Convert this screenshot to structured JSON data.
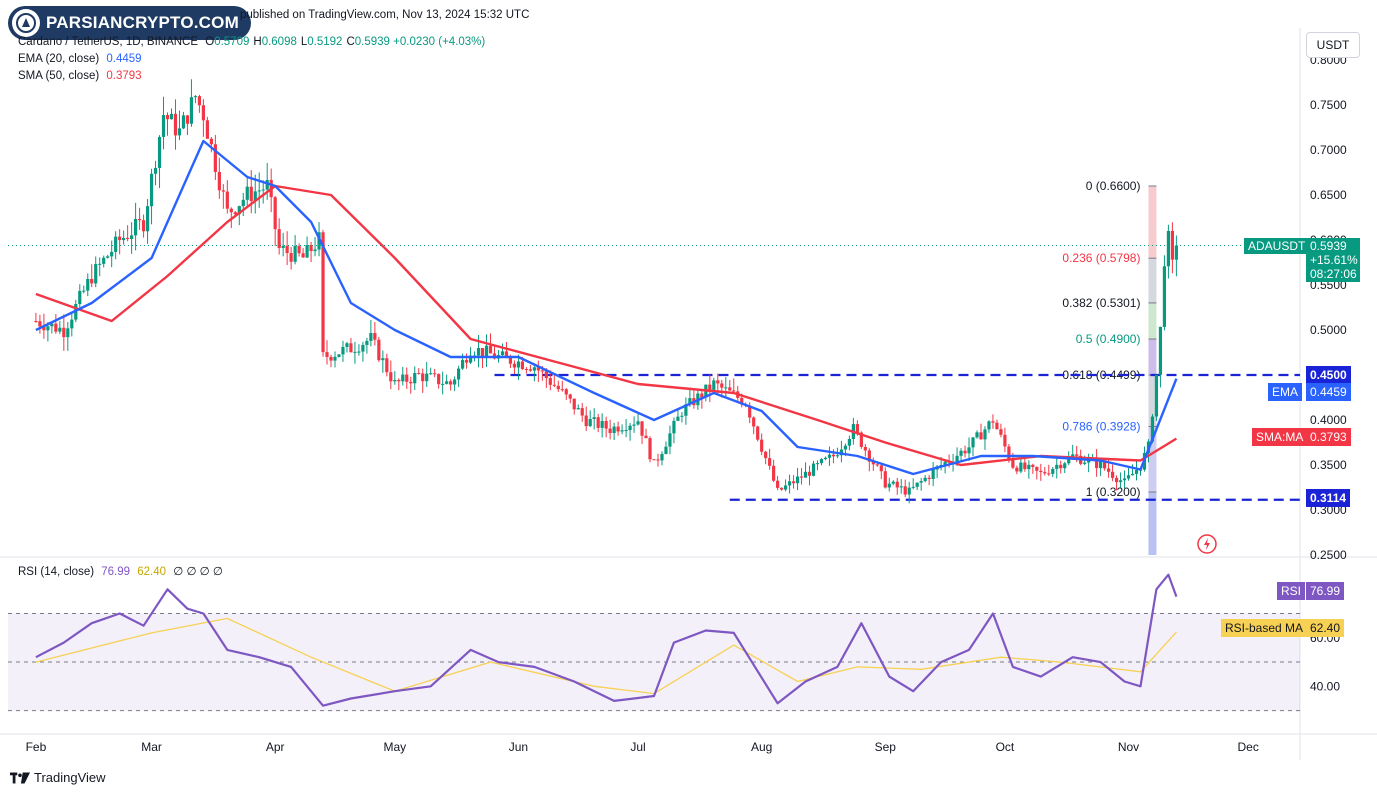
{
  "watermark": {
    "brand": "PARSIANCRYPTO.COM"
  },
  "header": {
    "published_line": "published on TradingView.com, Nov 13, 2024 15:32 UTC",
    "symbol": "Cardano / TetherUS, 1D, BINANCE",
    "ohlc": [
      {
        "k": "O",
        "v": "0.5709"
      },
      {
        "k": "H",
        "v": "0.6098"
      },
      {
        "k": "L",
        "v": "0.5192"
      },
      {
        "k": "C",
        "v": "0.5939"
      }
    ],
    "change": "+0.0230 (+4.03%)",
    "ema_label": "EMA (20, close)",
    "ema_value": "0.4459",
    "sma_label": "SMA (50, close)",
    "sma_value": "0.3793",
    "rsi_label": "RSI (14, close)",
    "rsi_value": "76.99",
    "rsi_ma_value": "62.40",
    "rsi_extra": "∅ ∅ ∅ ∅"
  },
  "currency_button": "USDT",
  "price_tag": {
    "symbol": "ADAUSDT",
    "price": "0.5939",
    "change": "+15.61%",
    "countdown": "08:27:06"
  },
  "level_tags": {
    "resistance": "0.4500",
    "support": "0.3114",
    "ema": "EMA",
    "ema_val": "0.4459",
    "sma": "SMA:MA",
    "sma_val": "0.3793",
    "rsi": "RSI",
    "rsi_val": "76.99",
    "rsi_ma": "RSI-based MA",
    "rsi_ma_val": "62.40"
  },
  "footer": {
    "brand": "TradingView"
  },
  "colors": {
    "up": "#089981",
    "down": "#f23645",
    "ema": "#2962ff",
    "sma": "#f23645",
    "rsi": "#7e57c2",
    "rsi_ma": "#f7d154",
    "level": "#1a23d6"
  },
  "chart_data": {
    "type": "candlestick",
    "title": "Cardano / TetherUS, 1D, BINANCE",
    "x_ticks": [
      "Feb",
      "Mar",
      "Apr",
      "May",
      "Jun",
      "Jul",
      "Aug",
      "Sep",
      "Oct",
      "Nov",
      "Dec"
    ],
    "y_ticks": [
      "0.8000",
      "0.7500",
      "0.7000",
      "0.6500",
      "0.6000",
      "0.5500",
      "0.5000",
      "0.4500",
      "0.4000",
      "0.3500",
      "0.3000",
      "0.2500"
    ],
    "rsi_ticks": [
      "80.00",
      "60.00",
      "40.00"
    ],
    "ylim": [
      0.25,
      0.8
    ],
    "rsi_ylim": [
      22,
      90
    ],
    "price_path": [
      [
        "2024-02-01",
        0.51
      ],
      [
        "2024-02-08",
        0.5
      ],
      [
        "2024-02-15",
        0.56
      ],
      [
        "2024-02-22",
        0.6
      ],
      [
        "2024-02-28",
        0.62
      ],
      [
        "2024-03-04",
        0.74
      ],
      [
        "2024-03-08",
        0.72
      ],
      [
        "2024-03-12",
        0.76
      ],
      [
        "2024-03-14",
        0.74
      ],
      [
        "2024-03-20",
        0.63
      ],
      [
        "2024-03-25",
        0.65
      ],
      [
        "2024-03-30",
        0.66
      ],
      [
        "2024-04-02",
        0.59
      ],
      [
        "2024-04-08",
        0.58
      ],
      [
        "2024-04-12",
        0.6
      ],
      [
        "2024-04-13",
        0.47
      ],
      [
        "2024-04-20",
        0.48
      ],
      [
        "2024-04-25",
        0.49
      ],
      [
        "2024-05-01",
        0.44
      ],
      [
        "2024-05-07",
        0.45
      ],
      [
        "2024-05-15",
        0.44
      ],
      [
        "2024-05-20",
        0.48
      ],
      [
        "2024-05-27",
        0.47
      ],
      [
        "2024-06-05",
        0.46
      ],
      [
        "2024-06-12",
        0.43
      ],
      [
        "2024-06-18",
        0.4
      ],
      [
        "2024-06-24",
        0.39
      ],
      [
        "2024-07-01",
        0.4
      ],
      [
        "2024-07-05",
        0.35
      ],
      [
        "2024-07-12",
        0.41
      ],
      [
        "2024-07-20",
        0.44
      ],
      [
        "2024-07-28",
        0.42
      ],
      [
        "2024-08-05",
        0.32
      ],
      [
        "2024-08-12",
        0.34
      ],
      [
        "2024-08-19",
        0.36
      ],
      [
        "2024-08-24",
        0.39
      ],
      [
        "2024-09-01",
        0.33
      ],
      [
        "2024-09-07",
        0.32
      ],
      [
        "2024-09-15",
        0.35
      ],
      [
        "2024-09-22",
        0.37
      ],
      [
        "2024-09-28",
        0.4
      ],
      [
        "2024-10-03",
        0.35
      ],
      [
        "2024-10-10",
        0.34
      ],
      [
        "2024-10-18",
        0.36
      ],
      [
        "2024-10-25",
        0.35
      ],
      [
        "2024-10-31",
        0.33
      ],
      [
        "2024-11-04",
        0.35
      ],
      [
        "2024-11-06",
        0.37
      ],
      [
        "2024-11-08",
        0.45
      ],
      [
        "2024-11-09",
        0.5
      ],
      [
        "2024-11-10",
        0.58
      ],
      [
        "2024-11-11",
        0.6
      ],
      [
        "2024-11-12",
        0.57
      ],
      [
        "2024-11-13",
        0.5939
      ]
    ],
    "ema20": [
      [
        "2024-02-01",
        0.5
      ],
      [
        "2024-02-15",
        0.53
      ],
      [
        "2024-03-01",
        0.58
      ],
      [
        "2024-03-10",
        0.67
      ],
      [
        "2024-03-14",
        0.71
      ],
      [
        "2024-03-25",
        0.67
      ],
      [
        "2024-04-01",
        0.66
      ],
      [
        "2024-04-10",
        0.62
      ],
      [
        "2024-04-20",
        0.53
      ],
      [
        "2024-05-01",
        0.5
      ],
      [
        "2024-05-15",
        0.47
      ],
      [
        "2024-06-01",
        0.47
      ],
      [
        "2024-06-20",
        0.43
      ],
      [
        "2024-07-05",
        0.4
      ],
      [
        "2024-07-20",
        0.43
      ],
      [
        "2024-08-01",
        0.41
      ],
      [
        "2024-08-10",
        0.37
      ],
      [
        "2024-08-25",
        0.36
      ],
      [
        "2024-09-08",
        0.34
      ],
      [
        "2024-09-25",
        0.36
      ],
      [
        "2024-10-08",
        0.36
      ],
      [
        "2024-10-25",
        0.355
      ],
      [
        "2024-11-04",
        0.345
      ],
      [
        "2024-11-13",
        0.4459
      ]
    ],
    "sma50": [
      [
        "2024-02-01",
        0.54
      ],
      [
        "2024-02-20",
        0.51
      ],
      [
        "2024-03-05",
        0.56
      ],
      [
        "2024-03-20",
        0.62
      ],
      [
        "2024-04-01",
        0.66
      ],
      [
        "2024-04-15",
        0.65
      ],
      [
        "2024-05-01",
        0.58
      ],
      [
        "2024-05-20",
        0.49
      ],
      [
        "2024-06-10",
        0.465
      ],
      [
        "2024-07-01",
        0.44
      ],
      [
        "2024-07-25",
        0.43
      ],
      [
        "2024-08-15",
        0.4
      ],
      [
        "2024-09-01",
        0.375
      ],
      [
        "2024-09-20",
        0.35
      ],
      [
        "2024-10-10",
        0.36
      ],
      [
        "2024-11-04",
        0.355
      ],
      [
        "2024-11-13",
        0.3793
      ]
    ],
    "rsi": [
      [
        "2024-02-01",
        52
      ],
      [
        "2024-02-08",
        58
      ],
      [
        "2024-02-15",
        66
      ],
      [
        "2024-02-22",
        70
      ],
      [
        "2024-02-28",
        65
      ],
      [
        "2024-03-05",
        80
      ],
      [
        "2024-03-10",
        72
      ],
      [
        "2024-03-14",
        70
      ],
      [
        "2024-03-20",
        55
      ],
      [
        "2024-03-28",
        52
      ],
      [
        "2024-04-05",
        48
      ],
      [
        "2024-04-13",
        32
      ],
      [
        "2024-04-20",
        35
      ],
      [
        "2024-05-01",
        38
      ],
      [
        "2024-05-10",
        40
      ],
      [
        "2024-05-20",
        55
      ],
      [
        "2024-05-27",
        50
      ],
      [
        "2024-06-05",
        48
      ],
      [
        "2024-06-15",
        42
      ],
      [
        "2024-06-25",
        34
      ],
      [
        "2024-07-05",
        36
      ],
      [
        "2024-07-10",
        58
      ],
      [
        "2024-07-18",
        63
      ],
      [
        "2024-07-25",
        62
      ],
      [
        "2024-08-05",
        33
      ],
      [
        "2024-08-12",
        42
      ],
      [
        "2024-08-20",
        48
      ],
      [
        "2024-08-26",
        66
      ],
      [
        "2024-09-02",
        44
      ],
      [
        "2024-09-08",
        38
      ],
      [
        "2024-09-15",
        50
      ],
      [
        "2024-09-22",
        55
      ],
      [
        "2024-09-28",
        70
      ],
      [
        "2024-10-03",
        48
      ],
      [
        "2024-10-10",
        44
      ],
      [
        "2024-10-18",
        52
      ],
      [
        "2024-10-25",
        50
      ],
      [
        "2024-10-31",
        42
      ],
      [
        "2024-11-04",
        40
      ],
      [
        "2024-11-08",
        80
      ],
      [
        "2024-11-11",
        86
      ],
      [
        "2024-11-13",
        76.99
      ]
    ],
    "rsi_ma": [
      [
        "2024-02-01",
        50
      ],
      [
        "2024-03-01",
        62
      ],
      [
        "2024-03-20",
        68
      ],
      [
        "2024-04-10",
        52
      ],
      [
        "2024-05-01",
        38
      ],
      [
        "2024-05-25",
        50
      ],
      [
        "2024-06-20",
        40
      ],
      [
        "2024-07-05",
        37
      ],
      [
        "2024-07-25",
        57
      ],
      [
        "2024-08-10",
        42
      ],
      [
        "2024-08-25",
        48
      ],
      [
        "2024-09-10",
        47
      ],
      [
        "2024-09-30",
        52
      ],
      [
        "2024-10-15",
        50
      ],
      [
        "2024-11-04",
        46
      ],
      [
        "2024-11-13",
        62.4
      ]
    ],
    "fib_levels": [
      {
        "label": "0 (0.6600)",
        "value": 0.66
      },
      {
        "label": "0.236 (0.5798)",
        "value": 0.5798
      },
      {
        "label": "0.382 (0.5301)",
        "value": 0.5301
      },
      {
        "label": "0.5 (0.4900)",
        "value": 0.49
      },
      {
        "label": "0.618 (0.4499)",
        "value": 0.4499
      },
      {
        "label": "0.786 (0.3928)",
        "value": 0.3928
      },
      {
        "label": "1 (0.3200)",
        "value": 0.32
      }
    ],
    "horizontal_levels": [
      {
        "value": 0.45,
        "style": "dashed"
      },
      {
        "value": 0.3114,
        "style": "dashed"
      }
    ],
    "rsi_bands": [
      70,
      50,
      30
    ]
  }
}
